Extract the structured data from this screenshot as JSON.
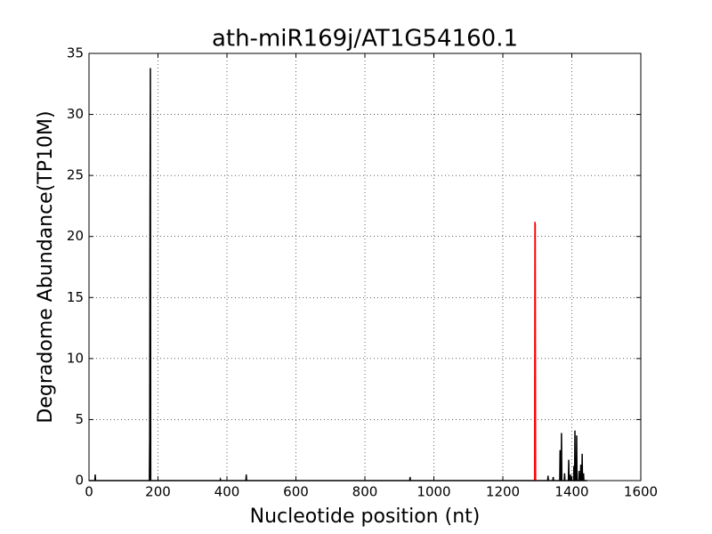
{
  "chart_data": {
    "type": "line",
    "title": "ath-miR169j/AT1G54160.1",
    "xlabel": "Nucleotide position (nt)",
    "ylabel": "Degradome Abundance(TP10M)",
    "xlim": [
      0,
      1600
    ],
    "xticks": [
      0,
      200,
      400,
      600,
      800,
      1000,
      1200,
      1400,
      1600
    ],
    "ylim": [
      0,
      35
    ],
    "yticks": [
      0,
      5,
      10,
      15,
      20,
      25,
      30,
      35
    ],
    "grid": true,
    "series": [
      {
        "color": "#000000",
        "x": [
          0,
          17,
          18,
          19,
          175,
          176,
          177,
          178,
          179,
          380,
          381,
          382,
          455,
          456,
          457,
          930,
          931,
          932,
          1330,
          1331,
          1332,
          1345,
          1346,
          1347,
          1365,
          1366,
          1367,
          1369,
          1370,
          1371,
          1378,
          1379,
          1380,
          1390,
          1391,
          1392,
          1395,
          1396,
          1397,
          1405,
          1406,
          1407,
          1408,
          1409,
          1410,
          1413,
          1414,
          1415,
          1420,
          1421,
          1422,
          1425,
          1426,
          1427,
          1429,
          1430,
          1431,
          1433,
          1434,
          1435,
          1445
        ],
        "values": [
          0,
          0,
          0.5,
          0,
          0,
          3.5,
          22.8,
          33.8,
          0,
          0,
          0.1,
          0,
          0,
          0.5,
          0,
          0,
          0.3,
          0,
          0,
          0.4,
          0,
          0,
          0.3,
          0,
          0,
          2.5,
          0,
          0,
          3.9,
          0,
          0,
          0.6,
          0,
          0,
          1.7,
          0,
          0,
          0.5,
          0,
          0,
          1.2,
          0,
          0,
          4.1,
          0,
          0,
          3.7,
          0,
          0,
          0.8,
          0,
          0,
          1.3,
          0,
          0,
          2.2,
          0,
          0,
          0.6,
          0,
          0
        ]
      },
      {
        "color": "#ff0000",
        "x": [
          1292,
          1293,
          1294,
          1295
        ],
        "values": [
          0,
          21.2,
          21.0,
          0
        ]
      }
    ]
  }
}
